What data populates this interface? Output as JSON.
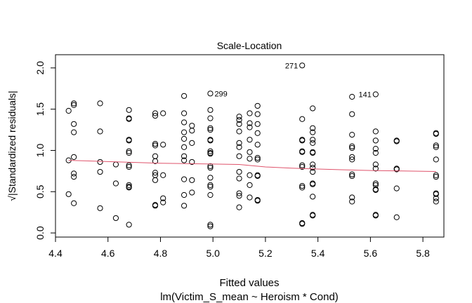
{
  "chart_data": {
    "type": "scatter",
    "title": "Scale-Location",
    "xlabel": "Fitted values",
    "subtitle": "lm(Victim_S_mean ~ Heroism * Cond)",
    "ylabel": "√|Standardized residuals|",
    "xlim": [
      4.4,
      5.88
    ],
    "ylim": [
      -0.05,
      2.16
    ],
    "x_ticks": [
      "4.4",
      "4.6",
      "4.8",
      "5.0",
      "5.2",
      "5.4",
      "5.6",
      "5.8"
    ],
    "y_ticks": [
      "0.0",
      "0.5",
      "1.0",
      "1.5",
      "2.0"
    ],
    "points": [
      [
        4.45,
        1.48
      ],
      [
        4.45,
        0.88
      ],
      [
        4.45,
        0.47
      ],
      [
        4.47,
        1.57
      ],
      [
        4.47,
        1.55
      ],
      [
        4.47,
        1.32
      ],
      [
        4.47,
        1.22
      ],
      [
        4.47,
        0.92
      ],
      [
        4.47,
        0.72
      ],
      [
        4.47,
        0.68
      ],
      [
        4.47,
        0.36
      ],
      [
        4.57,
        1.57
      ],
      [
        4.57,
        1.23
      ],
      [
        4.57,
        0.86
      ],
      [
        4.57,
        0.74
      ],
      [
        4.57,
        0.3
      ],
      [
        4.63,
        0.83
      ],
      [
        4.63,
        0.6
      ],
      [
        4.63,
        0.18
      ],
      [
        4.68,
        1.49
      ],
      [
        4.68,
        1.39
      ],
      [
        4.68,
        1.38
      ],
      [
        4.68,
        1.13
      ],
      [
        4.68,
        1.12
      ],
      [
        4.68,
        0.99
      ],
      [
        4.68,
        0.97
      ],
      [
        4.68,
        0.82
      ],
      [
        4.68,
        0.8
      ],
      [
        4.68,
        0.58
      ],
      [
        4.68,
        0.56
      ],
      [
        4.68,
        0.55
      ],
      [
        4.68,
        0.1
      ],
      [
        4.78,
        1.45
      ],
      [
        4.78,
        1.42
      ],
      [
        4.78,
        1.08
      ],
      [
        4.78,
        1.06
      ],
      [
        4.78,
        0.93
      ],
      [
        4.78,
        0.87
      ],
      [
        4.78,
        0.73
      ],
      [
        4.78,
        0.7
      ],
      [
        4.78,
        0.64
      ],
      [
        4.78,
        0.34
      ],
      [
        4.78,
        0.33
      ],
      [
        4.81,
        1.45
      ],
      [
        4.81,
        1.07
      ],
      [
        4.81,
        0.7
      ],
      [
        4.81,
        0.42
      ],
      [
        4.81,
        0.37
      ],
      [
        4.89,
        1.66
      ],
      [
        4.89,
        1.45
      ],
      [
        4.89,
        1.34
      ],
      [
        4.89,
        1.22
      ],
      [
        4.89,
        1.14
      ],
      [
        4.89,
        1.04
      ],
      [
        4.89,
        0.93
      ],
      [
        4.89,
        0.88
      ],
      [
        4.89,
        0.65
      ],
      [
        4.89,
        0.46
      ],
      [
        4.89,
        0.33
      ],
      [
        4.92,
        1.3
      ],
      [
        4.92,
        1.24
      ],
      [
        4.92,
        1.09
      ],
      [
        4.92,
        0.86
      ],
      [
        4.92,
        0.64
      ],
      [
        4.92,
        0.49
      ],
      [
        4.99,
        1.49
      ],
      [
        4.99,
        1.39
      ],
      [
        4.99,
        1.27
      ],
      [
        4.99,
        1.25
      ],
      [
        4.99,
        1.13
      ],
      [
        4.99,
        1.12
      ],
      [
        4.99,
        0.99
      ],
      [
        4.99,
        0.97
      ],
      [
        4.99,
        0.96
      ],
      [
        4.99,
        0.81
      ],
      [
        4.99,
        0.79
      ],
      [
        4.99,
        0.67
      ],
      [
        4.99,
        0.58
      ],
      [
        4.99,
        0.56
      ],
      [
        4.99,
        0.46
      ],
      [
        4.99,
        0.1
      ],
      [
        4.99,
        0.08
      ],
      [
        4.99,
        1.69
      ],
      [
        5.1,
        1.41
      ],
      [
        5.1,
        1.37
      ],
      [
        5.1,
        1.32
      ],
      [
        5.1,
        1.23
      ],
      [
        5.1,
        1.09
      ],
      [
        5.1,
        1.04
      ],
      [
        5.1,
        0.93
      ],
      [
        5.1,
        0.74
      ],
      [
        5.1,
        0.66
      ],
      [
        5.1,
        0.48
      ],
      [
        5.1,
        0.45
      ],
      [
        5.1,
        0.31
      ],
      [
        5.14,
        1.45
      ],
      [
        5.14,
        1.33
      ],
      [
        5.14,
        1.28
      ],
      [
        5.14,
        1.13
      ],
      [
        5.14,
        0.98
      ],
      [
        5.14,
        0.9
      ],
      [
        5.14,
        0.7
      ],
      [
        5.14,
        0.58
      ],
      [
        5.14,
        0.43
      ],
      [
        5.17,
        1.54
      ],
      [
        5.17,
        1.44
      ],
      [
        5.17,
        1.32
      ],
      [
        5.17,
        1.21
      ],
      [
        5.17,
        1.07
      ],
      [
        5.17,
        0.91
      ],
      [
        5.17,
        0.89
      ],
      [
        5.17,
        0.7
      ],
      [
        5.17,
        0.69
      ],
      [
        5.17,
        0.4
      ],
      [
        5.17,
        0.39
      ],
      [
        5.34,
        1.38
      ],
      [
        5.34,
        1.13
      ],
      [
        5.34,
        1.12
      ],
      [
        5.34,
        0.99
      ],
      [
        5.34,
        0.98
      ],
      [
        5.34,
        0.82
      ],
      [
        5.34,
        0.8
      ],
      [
        5.34,
        0.57
      ],
      [
        5.34,
        0.55
      ],
      [
        5.34,
        0.12
      ],
      [
        5.34,
        0.11
      ],
      [
        5.34,
        2.03
      ],
      [
        5.38,
        1.51
      ],
      [
        5.38,
        1.27
      ],
      [
        5.38,
        1.22
      ],
      [
        5.38,
        1.13
      ],
      [
        5.38,
        1.09
      ],
      [
        5.38,
        0.98
      ],
      [
        5.38,
        0.97
      ],
      [
        5.38,
        0.83
      ],
      [
        5.38,
        0.79
      ],
      [
        5.38,
        0.74
      ],
      [
        5.38,
        0.6
      ],
      [
        5.38,
        0.59
      ],
      [
        5.38,
        0.44
      ],
      [
        5.38,
        0.22
      ],
      [
        5.38,
        0.21
      ],
      [
        5.53,
        1.65
      ],
      [
        5.53,
        1.44
      ],
      [
        5.53,
        1.19
      ],
      [
        5.53,
        1.05
      ],
      [
        5.53,
        1.03
      ],
      [
        5.53,
        0.92
      ],
      [
        5.53,
        0.89
      ],
      [
        5.53,
        0.71
      ],
      [
        5.53,
        0.69
      ],
      [
        5.53,
        0.43
      ],
      [
        5.53,
        0.38
      ],
      [
        5.62,
        1.68
      ],
      [
        5.62,
        1.23
      ],
      [
        5.62,
        1.12
      ],
      [
        5.62,
        1.02
      ],
      [
        5.62,
        0.97
      ],
      [
        5.62,
        0.83
      ],
      [
        5.62,
        0.78
      ],
      [
        5.62,
        0.6
      ],
      [
        5.62,
        0.58
      ],
      [
        5.62,
        0.53
      ],
      [
        5.62,
        0.52
      ],
      [
        5.62,
        0.22
      ],
      [
        5.62,
        0.21
      ],
      [
        5.7,
        1.12
      ],
      [
        5.7,
        1.11
      ],
      [
        5.7,
        0.78
      ],
      [
        5.7,
        0.77
      ],
      [
        5.7,
        0.54
      ],
      [
        5.7,
        0.19
      ],
      [
        5.85,
        1.21
      ],
      [
        5.85,
        1.2
      ],
      [
        5.85,
        1.06
      ],
      [
        5.85,
        1.04
      ],
      [
        5.85,
        0.89
      ],
      [
        5.85,
        0.7
      ],
      [
        5.85,
        0.68
      ],
      [
        5.85,
        0.48
      ],
      [
        5.85,
        0.47
      ],
      [
        5.85,
        0.42
      ],
      [
        5.85,
        0.38
      ]
    ],
    "labeled_points": [
      {
        "x": 5.34,
        "y": 2.03,
        "label": "271",
        "side": "left"
      },
      {
        "x": 4.99,
        "y": 1.69,
        "label": "299",
        "side": "right"
      },
      {
        "x": 5.62,
        "y": 1.68,
        "label": "141",
        "side": "left"
      }
    ],
    "smoother": {
      "x": [
        4.45,
        4.6,
        4.8,
        5.0,
        5.1,
        5.2,
        5.3,
        5.4,
        5.5,
        5.62,
        5.7,
        5.85
      ],
      "y": [
        0.88,
        0.865,
        0.845,
        0.835,
        0.83,
        0.8,
        0.785,
        0.775,
        0.765,
        0.755,
        0.752,
        0.745
      ]
    },
    "colors": {
      "smoother": "#df536b",
      "points": "#000000"
    }
  }
}
